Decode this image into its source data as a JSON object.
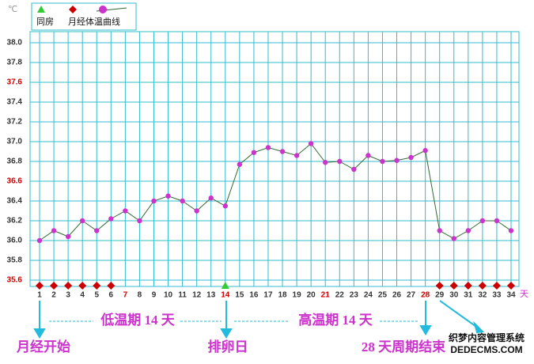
{
  "chart_data": {
    "type": "line",
    "y_unit": "℃",
    "x_unit": "天",
    "x": [
      1,
      2,
      3,
      4,
      5,
      6,
      7,
      8,
      9,
      10,
      11,
      12,
      13,
      14,
      15,
      16,
      17,
      18,
      19,
      20,
      21,
      22,
      23,
      24,
      25,
      26,
      27,
      28,
      29,
      30,
      31,
      32,
      33,
      34
    ],
    "series": [
      {
        "name": "体温曲线",
        "color": "#cc33cc",
        "line_color": "#2f6b2f",
        "values": [
          36.0,
          36.1,
          36.04,
          36.2,
          36.1,
          36.22,
          36.3,
          36.2,
          36.4,
          36.45,
          36.4,
          36.3,
          36.43,
          36.35,
          36.77,
          36.89,
          36.94,
          36.9,
          36.86,
          36.98,
          36.79,
          36.8,
          36.72,
          36.86,
          36.8,
          36.81,
          36.84,
          36.91,
          36.1,
          36.02,
          36.1,
          36.2,
          36.2,
          36.1
        ]
      }
    ],
    "event_markers": [
      {
        "name": "同房",
        "color": "#33cc33",
        "shape": "triangle",
        "days": [
          14
        ]
      },
      {
        "name": "月经",
        "color": "#cc0000",
        "shape": "diamond",
        "days": [
          1,
          2,
          3,
          4,
          5,
          6,
          29,
          30,
          31,
          32,
          33,
          34
        ]
      }
    ],
    "xlim": [
      1,
      34
    ],
    "xticks": [
      1,
      2,
      3,
      4,
      5,
      6,
      7,
      8,
      9,
      10,
      11,
      12,
      13,
      14,
      15,
      16,
      17,
      18,
      19,
      20,
      21,
      22,
      23,
      24,
      25,
      26,
      27,
      28,
      29,
      30,
      31,
      32,
      33,
      34
    ],
    "xticks_highlight": [
      7,
      14,
      21,
      28
    ],
    "ylim": [
      35.6,
      38.0
    ],
    "yticks": [
      {
        "value": 35.6,
        "label": "35.6"
      },
      {
        "value": 35.8,
        "label": "35.8"
      },
      {
        "value": 36.0,
        "label": "36.0"
      },
      {
        "value": 36.2,
        "label": "36.2"
      },
      {
        "value": 36.4,
        "label": "36.4"
      },
      {
        "value": 36.6,
        "label": "36.6"
      },
      {
        "value": 36.8,
        "label": "36.8"
      },
      {
        "value": 37.0,
        "label": "37.0"
      },
      {
        "value": 37.2,
        "label": "37.2"
      },
      {
        "value": 37.4,
        "label": "37.4"
      },
      {
        "value": 37.6,
        "label": "37.6"
      },
      {
        "value": 37.8,
        "label": "37.8"
      },
      {
        "value": 38.0,
        "label": "38.0"
      }
    ],
    "yticks_highlight": [
      35.6,
      36.6,
      37.6
    ],
    "grid": true,
    "annotations": {
      "low_phase": "低温期 14 天",
      "high_phase": "高温期 14 天",
      "period_start": "月经开始",
      "ovulation": "排卵日",
      "cycle_end": "28 天周期结束"
    },
    "watermark": [
      "织梦内容管理系统",
      "DEDECMS.COM"
    ]
  }
}
